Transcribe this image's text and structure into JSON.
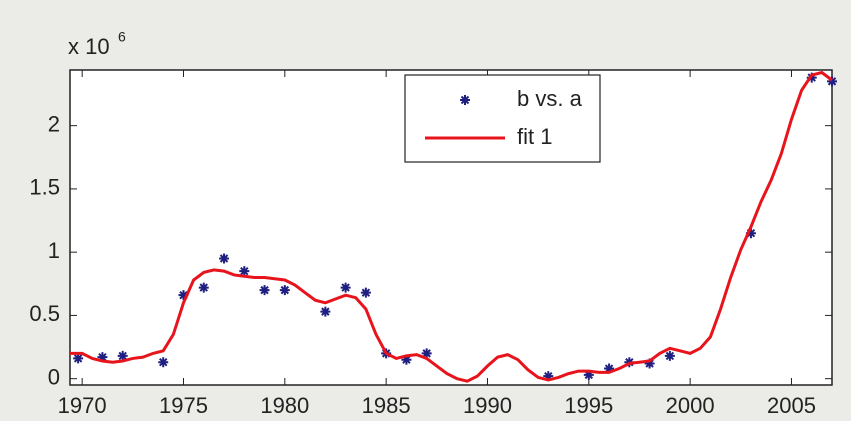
{
  "chart_data": {
    "type": "scatter_fit",
    "y_multiplier": "x 10",
    "y_exponent": "6",
    "xlim": [
      1969.4,
      2007
    ],
    "ylim": [
      -0.05,
      2.44
    ],
    "xticks": [
      1970,
      1975,
      1980,
      1985,
      1990,
      1995,
      2000,
      2005
    ],
    "yticks": [
      0,
      0.5,
      1,
      1.5,
      2
    ],
    "grid": false,
    "legend": "top",
    "series": [
      {
        "name": "b vs. a",
        "kind": "points",
        "color": "#1f1f80",
        "x": [
          1969.8,
          1971,
          1972,
          1974,
          1975,
          1976,
          1977,
          1978,
          1979,
          1980,
          1982,
          1983,
          1984,
          1985,
          1986,
          1987,
          1993,
          1995,
          1996,
          1997,
          1998,
          1999,
          2003,
          2006,
          2007
        ],
        "values": [
          0.16,
          0.17,
          0.18,
          0.13,
          0.66,
          0.72,
          0.95,
          0.85,
          0.7,
          0.7,
          0.53,
          0.72,
          0.68,
          0.2,
          0.15,
          0.2,
          0.02,
          0.03,
          0.08,
          0.13,
          0.12,
          0.18,
          1.15,
          2.38,
          2.35
        ]
      },
      {
        "name": "fit 1",
        "kind": "line",
        "color": "#e8141c",
        "x": [
          1969.4,
          1970,
          1970.5,
          1971,
          1971.5,
          1972,
          1972.5,
          1973,
          1973.5,
          1974,
          1974.5,
          1975,
          1975.5,
          1976,
          1976.5,
          1977,
          1977.5,
          1978,
          1978.5,
          1979,
          1979.5,
          1980,
          1980.5,
          1981,
          1981.5,
          1982,
          1982.5,
          1983,
          1983.5,
          1984,
          1984.5,
          1985,
          1985.5,
          1986,
          1986.5,
          1987,
          1987.5,
          1988,
          1988.5,
          1989,
          1989.5,
          1990,
          1990.5,
          1991,
          1991.5,
          1992,
          1992.5,
          1993,
          1993.5,
          1994,
          1994.5,
          1995,
          1995.5,
          1996,
          1996.5,
          1997,
          1997.5,
          1998,
          1998.5,
          1999,
          1999.5,
          2000,
          2000.5,
          2001,
          2001.5,
          2002,
          2002.5,
          2003,
          2003.5,
          2004,
          2004.5,
          2005,
          2005.5,
          2006,
          2006.5,
          2007
        ],
        "values": [
          0.2,
          0.2,
          0.16,
          0.14,
          0.13,
          0.14,
          0.16,
          0.17,
          0.2,
          0.22,
          0.35,
          0.6,
          0.78,
          0.84,
          0.86,
          0.85,
          0.82,
          0.81,
          0.8,
          0.8,
          0.79,
          0.78,
          0.74,
          0.68,
          0.62,
          0.6,
          0.63,
          0.66,
          0.64,
          0.55,
          0.35,
          0.2,
          0.16,
          0.18,
          0.19,
          0.16,
          0.1,
          0.04,
          0.0,
          -0.02,
          0.02,
          0.1,
          0.17,
          0.19,
          0.15,
          0.07,
          0.01,
          -0.01,
          0.01,
          0.04,
          0.06,
          0.06,
          0.05,
          0.05,
          0.08,
          0.12,
          0.13,
          0.14,
          0.2,
          0.24,
          0.22,
          0.2,
          0.24,
          0.33,
          0.55,
          0.8,
          1.02,
          1.2,
          1.4,
          1.57,
          1.78,
          2.05,
          2.28,
          2.4,
          2.42,
          2.36
        ]
      }
    ]
  }
}
